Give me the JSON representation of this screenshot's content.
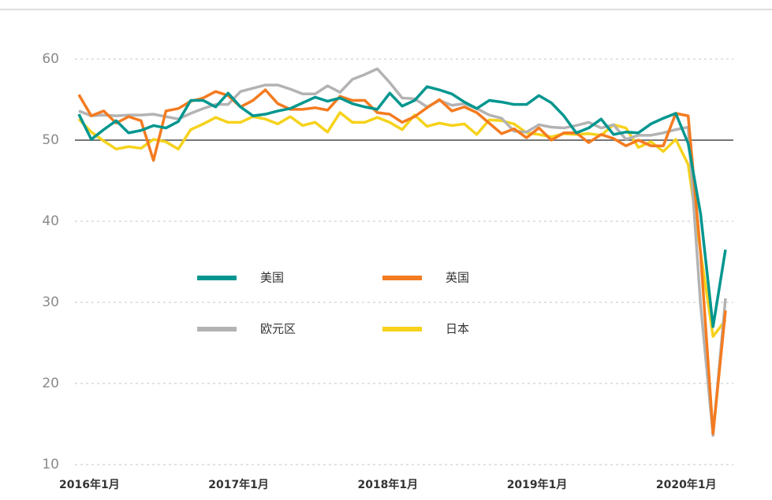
{
  "chart_data": {
    "type": "line",
    "categories": [
      "2016年1月",
      null,
      null,
      null,
      null,
      null,
      null,
      null,
      null,
      null,
      null,
      null,
      "2017年1月",
      null,
      null,
      null,
      null,
      null,
      null,
      null,
      null,
      null,
      null,
      null,
      "2018年1月",
      null,
      null,
      null,
      null,
      null,
      null,
      null,
      null,
      null,
      null,
      null,
      "2019年1月",
      null,
      null,
      null,
      null,
      null,
      null,
      null,
      null,
      null,
      null,
      null,
      "2020年1月",
      null,
      null,
      null,
      null
    ],
    "series": [
      {
        "name": "美国",
        "color": "#00968f",
        "values": [
          53.2,
          50.1,
          51.3,
          52.4,
          50.9,
          51.2,
          51.8,
          51.5,
          52.3,
          54.9,
          54.9,
          54.1,
          55.8,
          54.1,
          53.0,
          53.2,
          53.6,
          53.9,
          54.6,
          55.3,
          54.8,
          55.2,
          54.5,
          54.1,
          53.8,
          55.8,
          54.2,
          54.9,
          56.6,
          56.2,
          55.7,
          54.7,
          53.9,
          54.9,
          54.7,
          54.4,
          54.4,
          55.5,
          54.6,
          53.0,
          50.9,
          51.5,
          52.6,
          50.7,
          51.0,
          50.9,
          52.0,
          52.7,
          53.3,
          49.6,
          40.9,
          27.0,
          36.5
        ]
      },
      {
        "name": "英国",
        "color": "#f47b20",
        "values": [
          55.6,
          53.0,
          53.6,
          52.1,
          52.9,
          52.4,
          47.5,
          53.6,
          53.9,
          54.8,
          55.2,
          56.0,
          55.5,
          54.1,
          54.9,
          56.2,
          54.5,
          53.8,
          53.8,
          54.0,
          53.7,
          55.4,
          54.9,
          54.9,
          53.4,
          53.2,
          52.2,
          52.9,
          54.0,
          55.0,
          53.6,
          54.1,
          53.4,
          52.1,
          50.8,
          51.4,
          50.3,
          51.5,
          50.0,
          50.9,
          50.9,
          49.7,
          50.7,
          50.2,
          49.3,
          50.0,
          49.3,
          49.3,
          53.3,
          53.0,
          36.0,
          13.8,
          29.0
        ]
      },
      {
        "name": "欧元区",
        "color": "#b3b3b3",
        "values": [
          53.6,
          53.0,
          53.1,
          53.0,
          53.1,
          53.1,
          53.2,
          52.9,
          52.6,
          53.3,
          53.9,
          54.4,
          54.4,
          56.0,
          56.4,
          56.8,
          56.8,
          56.3,
          55.7,
          55.7,
          56.7,
          55.9,
          57.5,
          58.1,
          58.8,
          57.1,
          55.2,
          55.1,
          54.1,
          54.9,
          54.3,
          54.5,
          53.9,
          53.1,
          52.7,
          51.1,
          51.0,
          51.9,
          51.6,
          51.5,
          51.8,
          52.2,
          51.5,
          51.9,
          50.1,
          50.6,
          50.6,
          50.9,
          51.3,
          51.6,
          29.7,
          13.6,
          30.5
        ]
      },
      {
        "name": "日本",
        "color": "#f6d21a",
        "values": [
          52.6,
          51.0,
          49.9,
          48.9,
          49.2,
          49.0,
          50.1,
          49.8,
          48.9,
          51.3,
          52.0,
          52.8,
          52.2,
          52.2,
          52.9,
          52.6,
          52.0,
          52.9,
          51.8,
          52.2,
          51.0,
          53.4,
          52.2,
          52.2,
          52.8,
          52.2,
          51.3,
          53.1,
          51.7,
          52.1,
          51.8,
          52.0,
          50.7,
          52.5,
          52.4,
          52.0,
          50.9,
          50.7,
          50.4,
          50.8,
          50.7,
          50.8,
          50.6,
          51.9,
          51.5,
          49.1,
          49.8,
          48.6,
          50.1,
          47.0,
          36.2,
          25.8,
          27.8
        ]
      }
    ],
    "ylim": [
      10,
      60
    ],
    "yticks": [
      10,
      20,
      30,
      40,
      50,
      60
    ],
    "reference_line": 50,
    "grid": true,
    "legend": "center"
  }
}
